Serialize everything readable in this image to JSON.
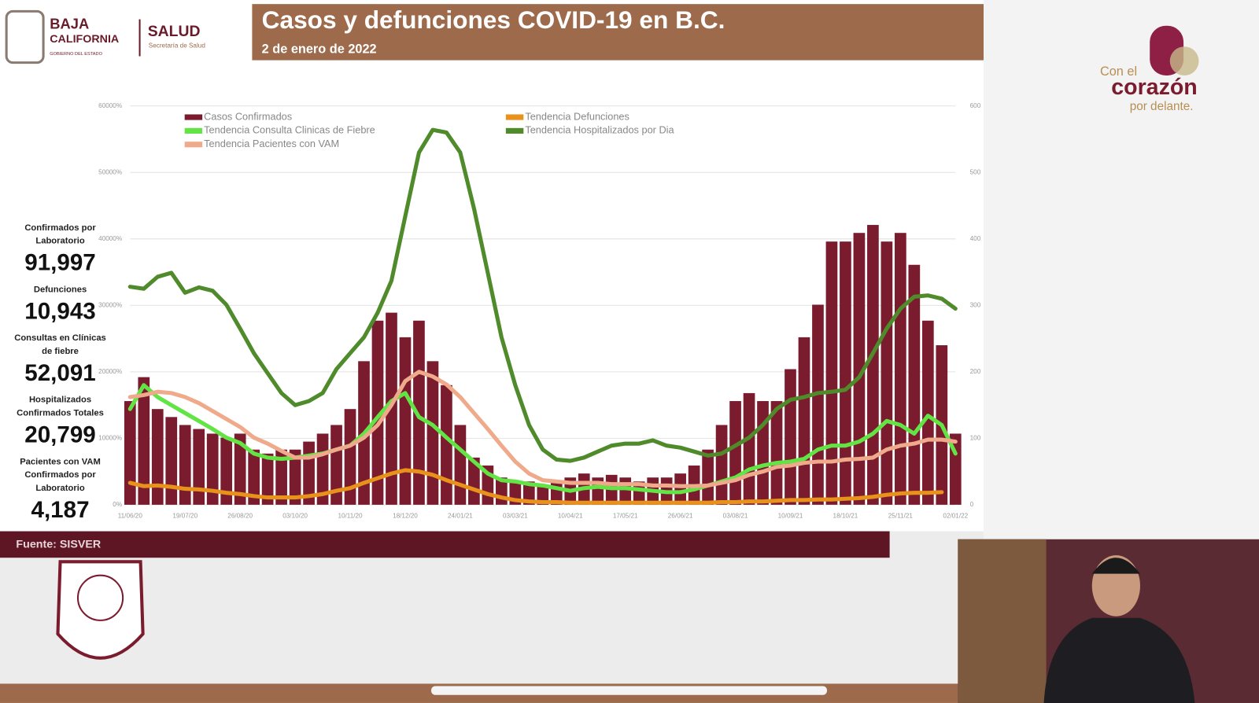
{
  "header": {
    "logo_line1": "BAJA",
    "logo_line2": "CALIFORNIA",
    "logo_line3": "GOBIERNO DEL ESTADO",
    "dept": "SALUD",
    "dept_sub": "Secretaría de Salud",
    "title": "Casos y defunciones COVID-19 en B.C.",
    "subtitle": "2 de enero de 2022"
  },
  "brand": {
    "line1": "Con el",
    "line2": "corazón",
    "line3": "por delante."
  },
  "stats": [
    {
      "label": [
        "Confirmados por",
        "Laboratorio"
      ],
      "value": "91,997"
    },
    {
      "label": [
        "Defunciones"
      ],
      "value": "10,943"
    },
    {
      "label": [
        "Consultas en Clínicas",
        "de fiebre"
      ],
      "value": "52,091"
    },
    {
      "label": [
        "Hospitalizados",
        "Confirmados Totales"
      ],
      "value": "20,799"
    },
    {
      "label": [
        "Pacientes con VAM",
        "Confirmados por",
        "Laboratorio"
      ],
      "value": "4,187"
    }
  ],
  "footer": {
    "source": "Fuente: SISVER"
  },
  "chart_data": {
    "type": "bar",
    "categories": [
      "11/06/20",
      null,
      null,
      null,
      "19/07/20",
      null,
      null,
      null,
      "26/08/20",
      null,
      null,
      null,
      "03/10/20",
      null,
      null,
      null,
      "10/11/20",
      null,
      null,
      null,
      "18/12/20",
      null,
      null,
      null,
      "24/01/21",
      null,
      null,
      null,
      "03/03/21",
      null,
      null,
      null,
      "10/04/21",
      null,
      null,
      null,
      "17/05/21",
      null,
      null,
      null,
      "26/06/21",
      null,
      null,
      null,
      "03/08/21",
      null,
      null,
      null,
      "10/09/21",
      null,
      null,
      null,
      "18/10/21",
      null,
      null,
      null,
      "25/11/21",
      null,
      null,
      null,
      "02/01/22"
    ],
    "ylim": [
      0,
      60000
    ],
    "yticks": [
      {
        "value": 0,
        "label": "0%"
      },
      {
        "value": 10000,
        "label": "10000%"
      },
      {
        "value": 20000,
        "label": "20000%"
      },
      {
        "value": 30000,
        "label": "30000%"
      },
      {
        "value": 40000,
        "label": "40000%"
      },
      {
        "value": 50000,
        "label": "50000%"
      },
      {
        "value": 60000,
        "label": "60000%"
      }
    ],
    "y2lim": [
      0,
      600
    ],
    "y2ticks": [
      0,
      100,
      200,
      300,
      400,
      500,
      600
    ],
    "grid": true,
    "legend": "top",
    "series": [
      {
        "name": "Casos Confirmados",
        "type": "bar",
        "axis": "y2",
        "color": "#7a1c2e",
        "values": [
          156,
          192,
          144,
          132,
          120,
          114,
          107,
          101,
          107,
          83,
          77,
          83,
          83,
          95,
          107,
          120,
          144,
          216,
          277,
          289,
          252,
          277,
          216,
          180,
          120,
          71,
          59,
          41,
          35,
          35,
          29,
          35,
          41,
          47,
          41,
          45,
          41,
          35,
          41,
          41,
          47,
          59,
          83,
          120,
          156,
          168,
          156,
          156,
          204,
          252,
          301,
          396,
          396,
          409,
          421,
          396,
          409,
          361,
          277,
          240,
          107
        ]
      },
      {
        "name": "Tendencia Defunciones",
        "type": "line",
        "axis": "y2",
        "color": "#e8921c",
        "values": [
          33,
          28,
          29,
          27,
          24,
          23,
          21,
          18,
          16,
          13,
          11,
          11,
          11,
          13,
          16,
          21,
          25,
          33,
          40,
          47,
          52,
          50,
          45,
          37,
          30,
          23,
          16,
          11,
          7,
          5,
          4,
          4,
          3,
          3,
          3,
          3,
          3,
          3,
          3,
          3,
          3,
          3,
          3,
          4,
          4,
          5,
          5,
          6,
          7,
          7,
          8,
          8,
          9,
          10,
          12,
          15,
          17,
          18,
          18,
          19,
          null
        ]
      },
      {
        "name": "Tendencia Consulta Clinicas de Fiebre",
        "type": "line",
        "axis": "y2",
        "color": "#62e445",
        "values": [
          144,
          180,
          162,
          150,
          138,
          126,
          114,
          101,
          93,
          77,
          71,
          69,
          71,
          74,
          77,
          83,
          89,
          107,
          132,
          156,
          168,
          132,
          120,
          101,
          83,
          65,
          47,
          37,
          35,
          31,
          29,
          25,
          21,
          25,
          27,
          25,
          25,
          23,
          21,
          19,
          19,
          23,
          29,
          35,
          41,
          53,
          59,
          63,
          65,
          69,
          83,
          89,
          89,
          95,
          107,
          126,
          120,
          107,
          134,
          120,
          77
        ]
      },
      {
        "name": "Tendencia Hospitalizados por Dia",
        "type": "line",
        "axis": "y2",
        "color": "#4f8a2b",
        "values": [
          328,
          325,
          343,
          349,
          319,
          327,
          322,
          301,
          265,
          228,
          198,
          168,
          150,
          156,
          168,
          204,
          228,
          252,
          289,
          337,
          434,
          530,
          564,
          560,
          530,
          446,
          349,
          252,
          180,
          120,
          83,
          68,
          66,
          71,
          80,
          89,
          92,
          92,
          97,
          89,
          86,
          80,
          74,
          77,
          89,
          101,
          120,
          144,
          158,
          162,
          168,
          170,
          173,
          192,
          228,
          265,
          295,
          313,
          315,
          310,
          295
        ]
      },
      {
        "name": "Tendencia Pacientes con VAM",
        "type": "line",
        "axis": "y2",
        "color": "#efa98b",
        "values": [
          162,
          165,
          170,
          168,
          162,
          153,
          141,
          129,
          117,
          101,
          92,
          81,
          71,
          71,
          76,
          83,
          89,
          101,
          120,
          150,
          186,
          200,
          193,
          181,
          162,
          138,
          114,
          89,
          65,
          47,
          37,
          35,
          33,
          33,
          33,
          31,
          31,
          31,
          29,
          29,
          28,
          28,
          29,
          33,
          37,
          45,
          50,
          57,
          59,
          63,
          65,
          65,
          68,
          69,
          71,
          83,
          89,
          92,
          98,
          98,
          95
        ]
      }
    ]
  }
}
